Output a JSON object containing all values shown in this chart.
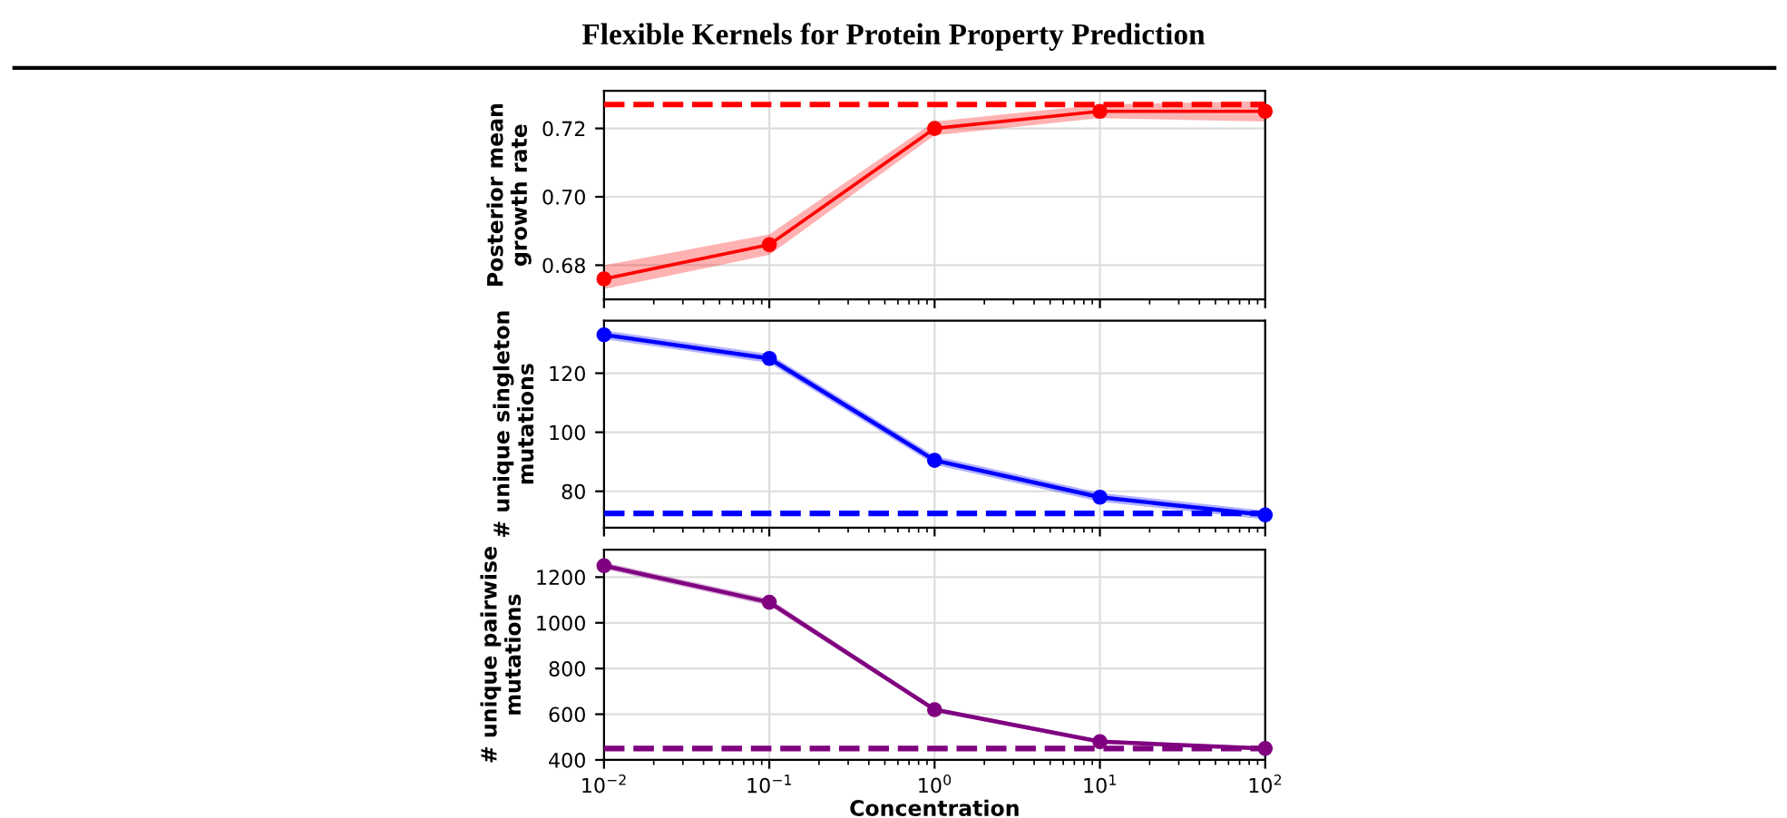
{
  "chart_data": [
    {
      "type": "line",
      "title": "Flexible Kernels for Protein Property Prediction",
      "ylabel": "Posterior mean\ngrowth rate",
      "log": "x",
      "x": [
        0.01,
        0.1,
        1,
        10,
        100
      ],
      "xlim": [
        0.01,
        100
      ],
      "xticks": [
        {
          "value": 0.01,
          "label": null
        },
        {
          "value": 0.1,
          "label": null
        },
        {
          "value": 1,
          "label": null
        },
        {
          "value": 10,
          "label": null
        },
        {
          "value": 100,
          "label": null
        }
      ],
      "ylim": [
        0.67,
        0.731
      ],
      "yticks": [
        0.68,
        {
          "value": 0.7,
          "label": "0.70"
        },
        0.72
      ],
      "tick_labels": "y",
      "grid": true,
      "marker": "circle",
      "line_style": "solid",
      "series": [
        {
          "color": "#ff0000",
          "values": [
            0.676,
            0.686,
            0.72,
            0.725,
            0.725
          ],
          "lower": [
            0.673,
            0.683,
            0.718,
            0.723,
            0.722
          ],
          "upper": [
            0.68,
            0.689,
            0.722,
            0.727,
            0.728
          ]
        }
      ],
      "ref_lines": [
        {
          "axis": "y",
          "value": 0.727,
          "color": "#ff0000",
          "line_style": "dashed"
        }
      ]
    },
    {
      "type": "line",
      "ylabel": "# unique singleton\nmutations",
      "log": "x",
      "x": [
        0.01,
        0.1,
        1,
        10,
        100
      ],
      "xlim": [
        0.01,
        100
      ],
      "xticks": [
        {
          "value": 0.01,
          "label": null
        },
        {
          "value": 0.1,
          "label": null
        },
        {
          "value": 1,
          "label": null
        },
        {
          "value": 10,
          "label": null
        },
        {
          "value": 100,
          "label": null
        }
      ],
      "ylim": [
        67.7,
        137.8
      ],
      "yticks": [
        80,
        100,
        120
      ],
      "tick_labels": "y",
      "grid": true,
      "marker": "circle",
      "line_style": "solid",
      "series": [
        {
          "color": "#0000ff",
          "values": [
            133,
            125,
            90.5,
            78,
            72
          ],
          "lower": [
            131.5,
            123.5,
            89,
            76.5,
            70.5
          ],
          "upper": [
            134.5,
            126.5,
            92,
            79.5,
            73.5
          ]
        }
      ],
      "ref_lines": [
        {
          "axis": "y",
          "value": 72.5,
          "color": "#0000ff",
          "line_style": "dashed"
        }
      ]
    },
    {
      "type": "line",
      "xlabel": "Concentration",
      "ylabel": "# unique pairwise\nmutations",
      "log": "x",
      "x": [
        0.01,
        0.1,
        1,
        10,
        100
      ],
      "xlim": [
        0.01,
        100
      ],
      "xticks": [
        {
          "value": 0.01,
          "label": "10$^{−2}$"
        },
        {
          "value": 0.1,
          "label": "10$^{−1}$"
        },
        {
          "value": 1,
          "label": "10$^{0}$"
        },
        {
          "value": 10,
          "label": "10$^{1}$"
        },
        {
          "value": 100,
          "label": "10$^{2}$"
        }
      ],
      "ylim": [
        400,
        1320
      ],
      "yticks": [
        400,
        600,
        800,
        1000,
        1200
      ],
      "grid": true,
      "marker": "circle",
      "line_style": "solid",
      "series": [
        {
          "color": "#800080",
          "values": [
            1250,
            1090,
            620,
            480,
            450
          ],
          "lower": [
            1235,
            1075,
            610,
            472,
            442
          ],
          "upper": [
            1265,
            1105,
            630,
            488,
            458
          ]
        }
      ],
      "ref_lines": [
        {
          "axis": "y",
          "value": 450,
          "color": "#800080",
          "line_style": "dashed"
        }
      ]
    }
  ]
}
